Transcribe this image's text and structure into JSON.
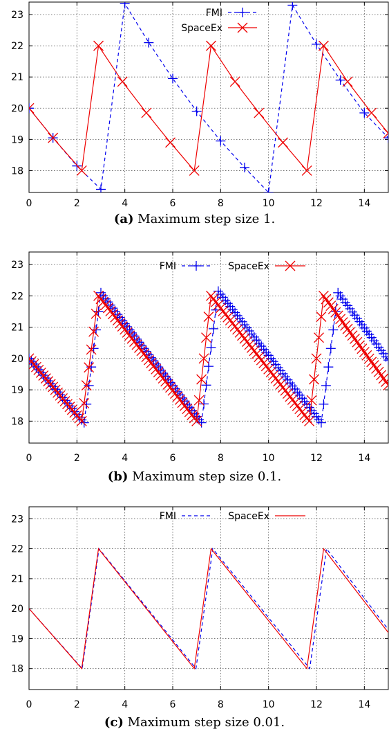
{
  "charts": [
    {
      "caption_id": "(a)",
      "caption_text": "Maximum step size 1.",
      "chart_data": {
        "type": "line",
        "xlim": [
          0,
          15
        ],
        "ylim": [
          17.3,
          23.4
        ],
        "xticks": [
          0,
          2,
          4,
          6,
          8,
          10,
          12,
          14
        ],
        "yticks": [
          18,
          19,
          20,
          21,
          22,
          23
        ],
        "grid": true,
        "legend_placement": "top-center",
        "series": [
          {
            "name": "FMI",
            "color": "#0000ee",
            "line": "dashed",
            "marker": "plus",
            "x": [
              0,
              1,
              2,
              3,
              4,
              5,
              6,
              7,
              8,
              9,
              10,
              11,
              12,
              13,
              14,
              15
            ],
            "y": [
              20,
              19.05,
              18.15,
              17.4,
              23.35,
              22.1,
              20.95,
              19.9,
              18.95,
              18.1,
              17.3,
              23.3,
              22.05,
              20.9,
              19.85,
              19.05
            ]
          },
          {
            "name": "SpaceEx",
            "color": "#ee0000",
            "line": "solid",
            "marker": "cross",
            "x": [
              0,
              1,
              2.2,
              2.9,
              3.9,
              4.9,
              5.9,
              6.9,
              7.6,
              8.6,
              9.6,
              10.6,
              11.6,
              12.3,
              13.3,
              14.3,
              15
            ],
            "y": [
              20,
              19.05,
              18.0,
              22.0,
              20.85,
              19.85,
              18.9,
              18.0,
              22.0,
              20.85,
              19.85,
              18.9,
              18.0,
              22.0,
              20.85,
              19.85,
              19.2
            ]
          }
        ]
      }
    },
    {
      "caption_id": "(b)",
      "caption_text": "Maximum step size 0.1.",
      "chart_data": {
        "type": "line",
        "xlim": [
          0,
          15
        ],
        "ylim": [
          17.3,
          23.4
        ],
        "xticks": [
          0,
          2,
          4,
          6,
          8,
          10,
          12,
          14
        ],
        "yticks": [
          18,
          19,
          20,
          21,
          22,
          23
        ],
        "grid": true,
        "legend_placement": "top-center",
        "series": [
          {
            "name": "FMI",
            "color": "#0000ee",
            "line": "dashed",
            "marker": "plus",
            "x": [
              0,
              2.3,
              3.0,
              7.2,
              7.9,
              12.2,
              12.9,
              15
            ],
            "y": [
              20,
              17.95,
              22.1,
              17.95,
              22.15,
              17.95,
              22.1,
              19.95
            ]
          },
          {
            "name": "SpaceEx",
            "color": "#ee0000",
            "line": "solid",
            "marker": "cross",
            "x": [
              0,
              2.2,
              2.9,
              7.0,
              7.6,
              11.7,
              12.3,
              15
            ],
            "y": [
              20,
              18.0,
              22.0,
              18.0,
              22.0,
              18.0,
              22.0,
              19.15
            ]
          }
        ]
      }
    },
    {
      "caption_id": "(c)",
      "caption_text": "Maximum step size 0.01.",
      "chart_data": {
        "type": "line",
        "xlim": [
          0,
          15
        ],
        "ylim": [
          17.3,
          23.4
        ],
        "xticks": [
          0,
          2,
          4,
          6,
          8,
          10,
          12,
          14
        ],
        "yticks": [
          18,
          19,
          20,
          21,
          22,
          23
        ],
        "grid": true,
        "legend_placement": "top-center",
        "series": [
          {
            "name": "FMI",
            "color": "#0000ee",
            "line": "dashed",
            "marker": "none",
            "x": [
              0,
              2.22,
              2.92,
              6.97,
              7.67,
              11.72,
              12.42,
              15
            ],
            "y": [
              20,
              18.0,
              22.0,
              18.0,
              22.0,
              18.0,
              22.0,
              19.3
            ]
          },
          {
            "name": "SpaceEx",
            "color": "#ee0000",
            "line": "solid",
            "marker": "none",
            "x": [
              0,
              2.2,
              2.9,
              6.9,
              7.6,
              11.6,
              12.3,
              15
            ],
            "y": [
              20,
              18.0,
              22.0,
              18.0,
              22.0,
              18.0,
              22.0,
              19.2
            ]
          }
        ]
      }
    }
  ]
}
